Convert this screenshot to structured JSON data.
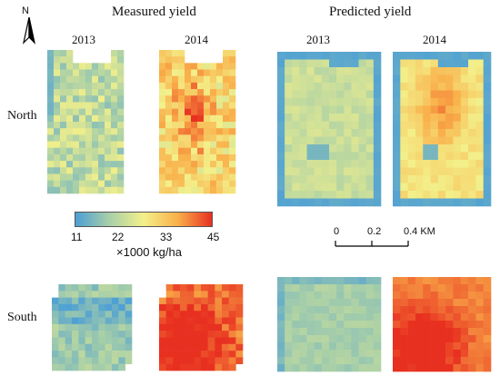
{
  "headers": {
    "measured": "Measured yield",
    "predicted": "Predicted yield"
  },
  "north_arrow": {
    "label": "N"
  },
  "years": {
    "m2013": "2013",
    "m2014": "2014",
    "p2013": "2013",
    "p2014": "2014"
  },
  "rows": {
    "north": "North",
    "south": "South"
  },
  "legend": {
    "ticks": [
      "11",
      "22",
      "33",
      "45"
    ],
    "unit": "×1000 kg/ha",
    "colors": [
      "#4c9fd4",
      "#a8cfa8",
      "#f3f08a",
      "#f9b04a",
      "#e83020"
    ],
    "range": [
      11,
      45
    ]
  },
  "scalebar": {
    "labels": [
      "0",
      "0.2",
      "0.4 KM"
    ]
  },
  "maps": {
    "north_measured_2013": {
      "level": 0.33
    },
    "north_measured_2014": {
      "level": 0.6
    },
    "north_predicted_2013": {
      "level": 0.36
    },
    "north_predicted_2014": {
      "level": 0.55
    },
    "south_measured_2013": {
      "level": 0.22
    },
    "south_measured_2014": {
      "level": 0.88
    },
    "south_predicted_2013": {
      "level": 0.25
    },
    "south_predicted_2014": {
      "level": 0.84
    }
  }
}
